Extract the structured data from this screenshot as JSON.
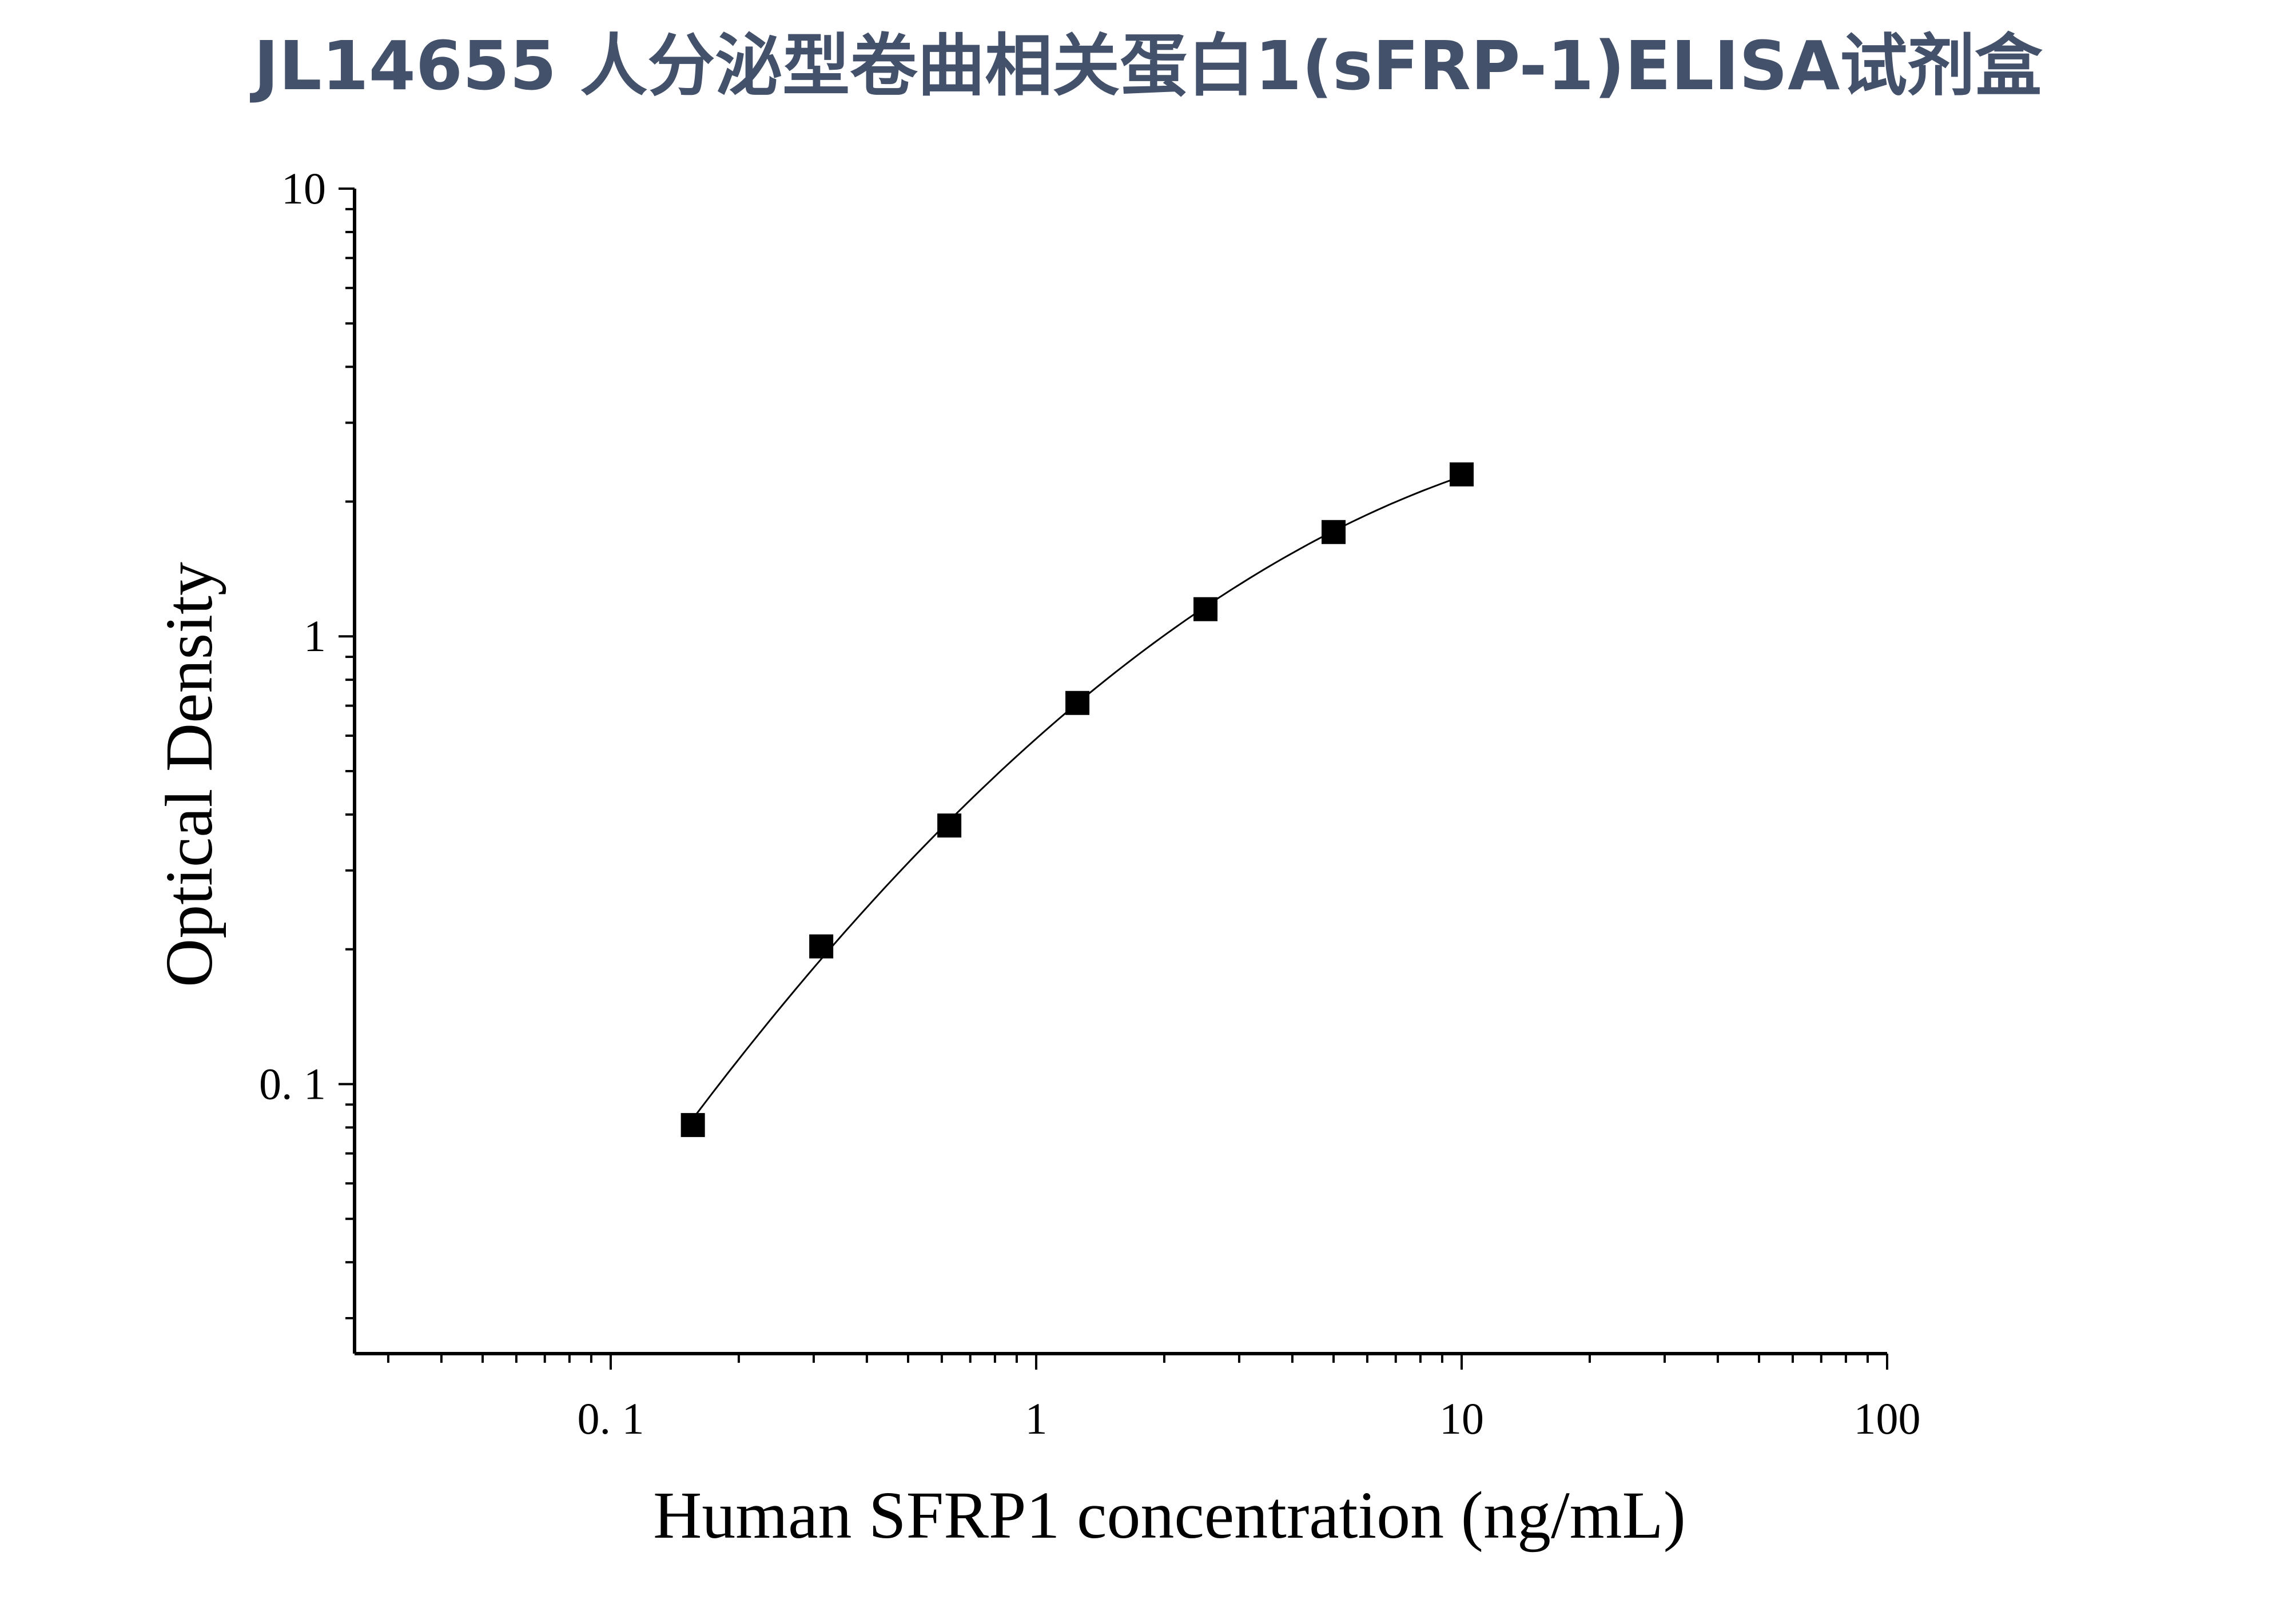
{
  "title": "JL14655 人分泌型卷曲相关蛋白1(sFRP-1)ELISA试剂盒",
  "chart_data": {
    "type": "scatter",
    "xlabel": "Human SFRP1 concentration (ng/mL)",
    "ylabel": "Optical Density",
    "xscale": "log",
    "yscale": "log",
    "xlim": [
      0.025,
      100
    ],
    "ylim": [
      0.025,
      10
    ],
    "x_tick_labels": [
      "0. 1",
      "1",
      "10",
      "100"
    ],
    "y_tick_labels": [
      "0. 1",
      "1",
      "10"
    ],
    "grid": false,
    "legend": "none",
    "series": [
      {
        "x": [
          0.156,
          0.3125,
          0.625,
          1.25,
          2.5,
          5,
          10
        ],
        "y": [
          0.081,
          0.203,
          0.378,
          0.71,
          1.15,
          1.71,
          2.3
        ],
        "marker": "square",
        "fit_line": true
      }
    ],
    "colors": {
      "marker": "#000000",
      "axis": "#000000",
      "title": "#44516b"
    }
  }
}
